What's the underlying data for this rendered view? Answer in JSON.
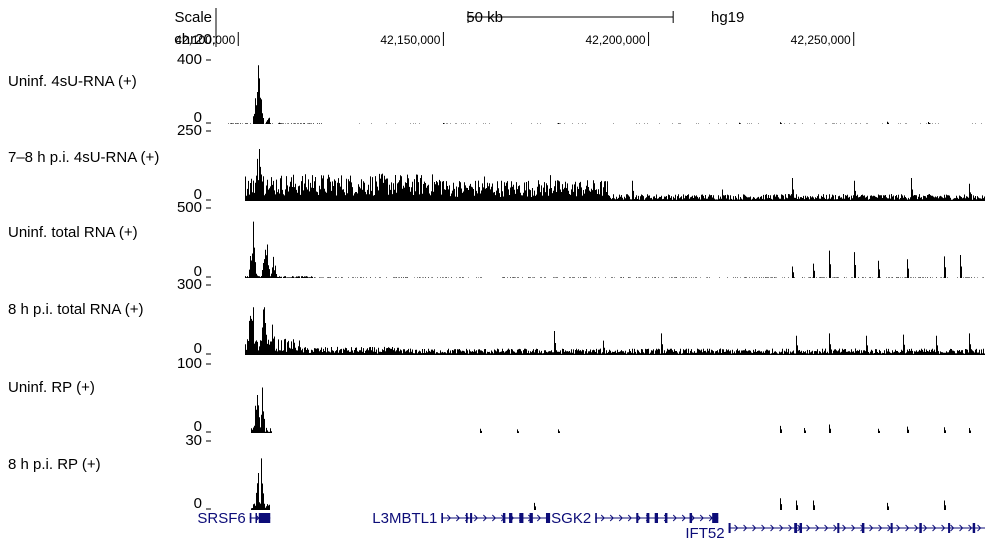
{
  "header": {
    "scale_label": "Scale",
    "scale_bar_label": "50 kb",
    "assembly": "hg19",
    "chrom_label": "chr20:"
  },
  "chart_data": {
    "type": "area",
    "x_axis": {
      "chrom": "chr20",
      "range": [
        42097500,
        42282000
      ],
      "tick_values": [
        42100000,
        42150000,
        42200000,
        42250000
      ],
      "tick_labels": [
        "42,100,000",
        "42,150,000",
        "42,200,000",
        "42,250,000"
      ],
      "scale_bar_range": [
        42156000,
        42206000
      ]
    },
    "tracks": [
      {
        "name": "Uninf. 4sU-RNA (+)",
        "ymax_label": "400",
        "ymin_label": "0",
        "ylim": [
          0,
          400
        ],
        "color": "#000000",
        "peaks": [
          [
            42104800,
            330,
            900
          ],
          [
            42107200,
            52,
            500
          ]
        ],
        "background": [
          [
            42097500,
            42107600,
            3
          ],
          [
            42107600,
            42120800,
            3
          ],
          [
            42128000,
            42282000,
            2
          ]
        ],
        "spikes": [
          [
            42110000,
            8
          ],
          [
            42150000,
            6
          ],
          [
            42178000,
            6
          ],
          [
            42222000,
            7
          ],
          [
            42232000,
            10
          ],
          [
            42258000,
            14
          ],
          [
            42268000,
            12
          ]
        ]
      },
      {
        "name": "7–8 h p.i. 4sU-RNA (+)",
        "ymax_label": "250",
        "ymin_label": "0",
        "ylim": [
          0,
          250
        ],
        "color": "#000000",
        "peaks": [
          [
            42104900,
            190,
            900
          ],
          [
            42107000,
            120,
            600
          ]
        ],
        "background": [
          [
            42101500,
            42150000,
            70
          ],
          [
            42150000,
            42190000,
            55
          ],
          [
            42190000,
            42282000,
            18
          ]
        ],
        "spikes": [
          [
            42118000,
            90
          ],
          [
            42135000,
            95
          ],
          [
            42160000,
            85
          ],
          [
            42176000,
            90
          ],
          [
            42196000,
            70
          ],
          [
            42218000,
            40
          ],
          [
            42235000,
            80
          ],
          [
            42250000,
            70
          ],
          [
            42264000,
            80
          ],
          [
            42278000,
            60
          ]
        ]
      },
      {
        "name": "Uninf. total RNA (+)",
        "ymax_label": "500",
        "ymin_label": "0",
        "ylim": [
          0,
          500
        ],
        "color": "#000000",
        "peaks": [
          [
            42103500,
            400,
            700
          ],
          [
            42106600,
            370,
            700
          ],
          [
            42108500,
            160,
            600
          ]
        ],
        "background": [
          [
            42101500,
            42118000,
            10
          ],
          [
            42118000,
            42282000,
            3
          ]
        ],
        "spikes": [
          [
            42235000,
            80
          ],
          [
            42240000,
            100
          ],
          [
            42244000,
            190
          ],
          [
            42250000,
            180
          ],
          [
            42256000,
            120
          ],
          [
            42263000,
            130
          ],
          [
            42272000,
            150
          ],
          [
            42276000,
            160
          ]
        ]
      },
      {
        "name": "8 h p.i. total RNA (+)",
        "ymax_label": "300",
        "ymin_label": "0",
        "ylim": [
          0,
          300
        ],
        "color": "#000000",
        "peaks": [
          [
            42103200,
            240,
            800
          ],
          [
            42106300,
            200,
            800
          ],
          [
            42108300,
            120,
            600
          ]
        ],
        "background": [
          [
            42101500,
            42115000,
            50
          ],
          [
            42115000,
            42140000,
            25
          ],
          [
            42140000,
            42282000,
            20
          ]
        ],
        "spikes": [
          [
            42177000,
            100
          ],
          [
            42189000,
            60
          ],
          [
            42203000,
            90
          ],
          [
            42236000,
            80
          ],
          [
            42244000,
            90
          ],
          [
            42253000,
            80
          ],
          [
            42262000,
            85
          ],
          [
            42270000,
            80
          ],
          [
            42278000,
            90
          ]
        ]
      },
      {
        "name": "Uninf. RP (+)",
        "ymax_label": "100",
        "ymin_label": "0",
        "ylim": [
          0,
          100
        ],
        "color": "#000000",
        "peaks": [
          [
            42104500,
            85,
            500
          ],
          [
            42105800,
            92,
            400
          ]
        ],
        "background": [
          [
            42103000,
            42108000,
            6
          ]
        ],
        "spikes": [
          [
            42159000,
            6
          ],
          [
            42168000,
            5
          ],
          [
            42178000,
            5
          ],
          [
            42232000,
            10
          ],
          [
            42238000,
            7
          ],
          [
            42244000,
            12
          ],
          [
            42256000,
            6
          ],
          [
            42263000,
            9
          ],
          [
            42272000,
            8
          ],
          [
            42278000,
            7
          ]
        ]
      },
      {
        "name": "8 h p.i. RP (+)",
        "ymax_label": "30",
        "ymin_label": "0",
        "ylim": [
          0,
          30
        ],
        "color": "#000000",
        "peaks": [
          [
            42104600,
            22,
            400
          ],
          [
            42105700,
            25,
            350
          ]
        ],
        "background": [
          [
            42103000,
            42107500,
            2
          ]
        ],
        "spikes": [
          [
            42172000,
            3
          ],
          [
            42232000,
            5
          ],
          [
            42236000,
            4
          ],
          [
            42240000,
            4
          ],
          [
            42258000,
            3
          ],
          [
            42272000,
            4
          ]
        ]
      }
    ],
    "genes": [
      {
        "name": "SRSF6",
        "start": 42102800,
        "end": 42107800,
        "strand": "+",
        "row": 0,
        "exons": [
          [
            42102800,
            42103200
          ],
          [
            42104200,
            42104500
          ],
          [
            42105000,
            42107800
          ]
        ]
      },
      {
        "name": "L3MBTL1",
        "start": 42149500,
        "end": 42176000,
        "strand": "+",
        "row": 0,
        "exons": [
          [
            42149500,
            42149900
          ],
          [
            42155500,
            42155900
          ],
          [
            42156500,
            42157000
          ],
          [
            42164500,
            42165100
          ],
          [
            42166000,
            42166800
          ],
          [
            42168500,
            42169500
          ],
          [
            42171000,
            42171800
          ],
          [
            42175000,
            42176000
          ]
        ]
      },
      {
        "name": "SGK2",
        "start": 42187000,
        "end": 42217000,
        "strand": "+",
        "row": 0,
        "exons": [
          [
            42187000,
            42187400
          ],
          [
            42197000,
            42197500
          ],
          [
            42199500,
            42200200
          ],
          [
            42201500,
            42202300
          ],
          [
            42204000,
            42204600
          ],
          [
            42210000,
            42210600
          ],
          [
            42215500,
            42217000
          ]
        ]
      },
      {
        "name": "IFT52",
        "start": 42219500,
        "end": 42282000,
        "strand": "+",
        "row": 1,
        "exons": [
          [
            42219500,
            42220000
          ],
          [
            42235500,
            42236200
          ],
          [
            42236800,
            42237400
          ],
          [
            42246000,
            42246500
          ],
          [
            42252000,
            42252600
          ],
          [
            42259000,
            42259500
          ],
          [
            42266000,
            42266600
          ],
          [
            42273000,
            42273500
          ],
          [
            42279000,
            42279600
          ]
        ]
      }
    ]
  }
}
